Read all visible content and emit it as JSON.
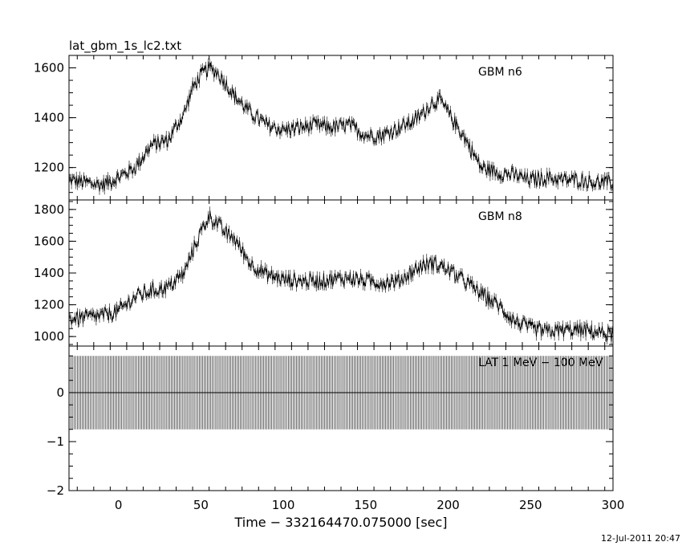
{
  "header": {
    "title": "lat_gbm_1s_lc2.txt",
    "timestamp": "12-Jul-2011 20:47"
  },
  "chart_data": {
    "type": "line",
    "title": "lat_gbm_1s_lc2.txt",
    "xlabel": "Time − 332164470.075000 [sec]",
    "xlim": [
      -30,
      300
    ],
    "x_ticks": [
      0,
      50,
      100,
      150,
      200,
      250,
      300
    ],
    "x_ticks_labels": [
      "0",
      "50",
      "100",
      "150",
      "200",
      "250",
      "300"
    ],
    "grid": false,
    "panels": [
      {
        "label": "GBM n6",
        "label_position": "top-right",
        "ylim": [
          1070,
          1650
        ],
        "y_ticks": [
          1200,
          1400,
          1600
        ],
        "y_ticks_labels": [
          "1200",
          "1400",
          "1600"
        ],
        "x": [
          -30,
          -20,
          -10,
          0,
          10,
          20,
          30,
          40,
          45,
          50,
          55,
          60,
          65,
          70,
          80,
          90,
          100,
          110,
          120,
          130,
          140,
          150,
          160,
          170,
          180,
          185,
          190,
          195,
          200,
          210,
          220,
          230,
          240,
          250,
          260,
          270,
          280,
          290,
          300
        ],
        "y": [
          1150,
          1140,
          1130,
          1160,
          1200,
          1290,
          1310,
          1420,
          1520,
          1570,
          1600,
          1580,
          1540,
          1490,
          1420,
          1370,
          1350,
          1360,
          1370,
          1360,
          1370,
          1330,
          1330,
          1360,
          1390,
          1420,
          1460,
          1470,
          1420,
          1320,
          1200,
          1180,
          1170,
          1150,
          1160,
          1150,
          1150,
          1140,
          1140
        ]
      },
      {
        "label": "GBM n8",
        "label_position": "top-right",
        "ylim": [
          940,
          1860
        ],
        "y_ticks": [
          1000,
          1200,
          1400,
          1600,
          1800
        ],
        "y_ticks_labels": [
          "1000",
          "1200",
          "1400",
          "1600",
          "1800"
        ],
        "x": [
          -30,
          -20,
          -10,
          0,
          10,
          20,
          30,
          40,
          45,
          50,
          55,
          60,
          65,
          70,
          80,
          90,
          100,
          110,
          120,
          130,
          140,
          150,
          160,
          170,
          180,
          185,
          190,
          195,
          200,
          210,
          220,
          230,
          240,
          250,
          260,
          270,
          280,
          290,
          300
        ],
        "y": [
          1110,
          1120,
          1130,
          1160,
          1250,
          1290,
          1310,
          1400,
          1540,
          1660,
          1760,
          1710,
          1650,
          1620,
          1460,
          1390,
          1360,
          1350,
          1350,
          1360,
          1370,
          1350,
          1340,
          1350,
          1420,
          1450,
          1460,
          1450,
          1420,
          1350,
          1270,
          1200,
          1100,
          1050,
          1030,
          1040,
          1040,
          1030,
          1010
        ]
      },
      {
        "label": "LAT 1 MeV − 100 MeV",
        "label_position": "top-right",
        "ylim": [
          -2,
          0.95
        ],
        "y_ticks": [
          -2,
          -1,
          0
        ],
        "y_ticks_labels": [
          "−2",
          "−1",
          "0"
        ],
        "x_range": [
          -30,
          300
        ],
        "x_step": 1,
        "y_value": 0,
        "error": 0.75
      }
    ]
  }
}
